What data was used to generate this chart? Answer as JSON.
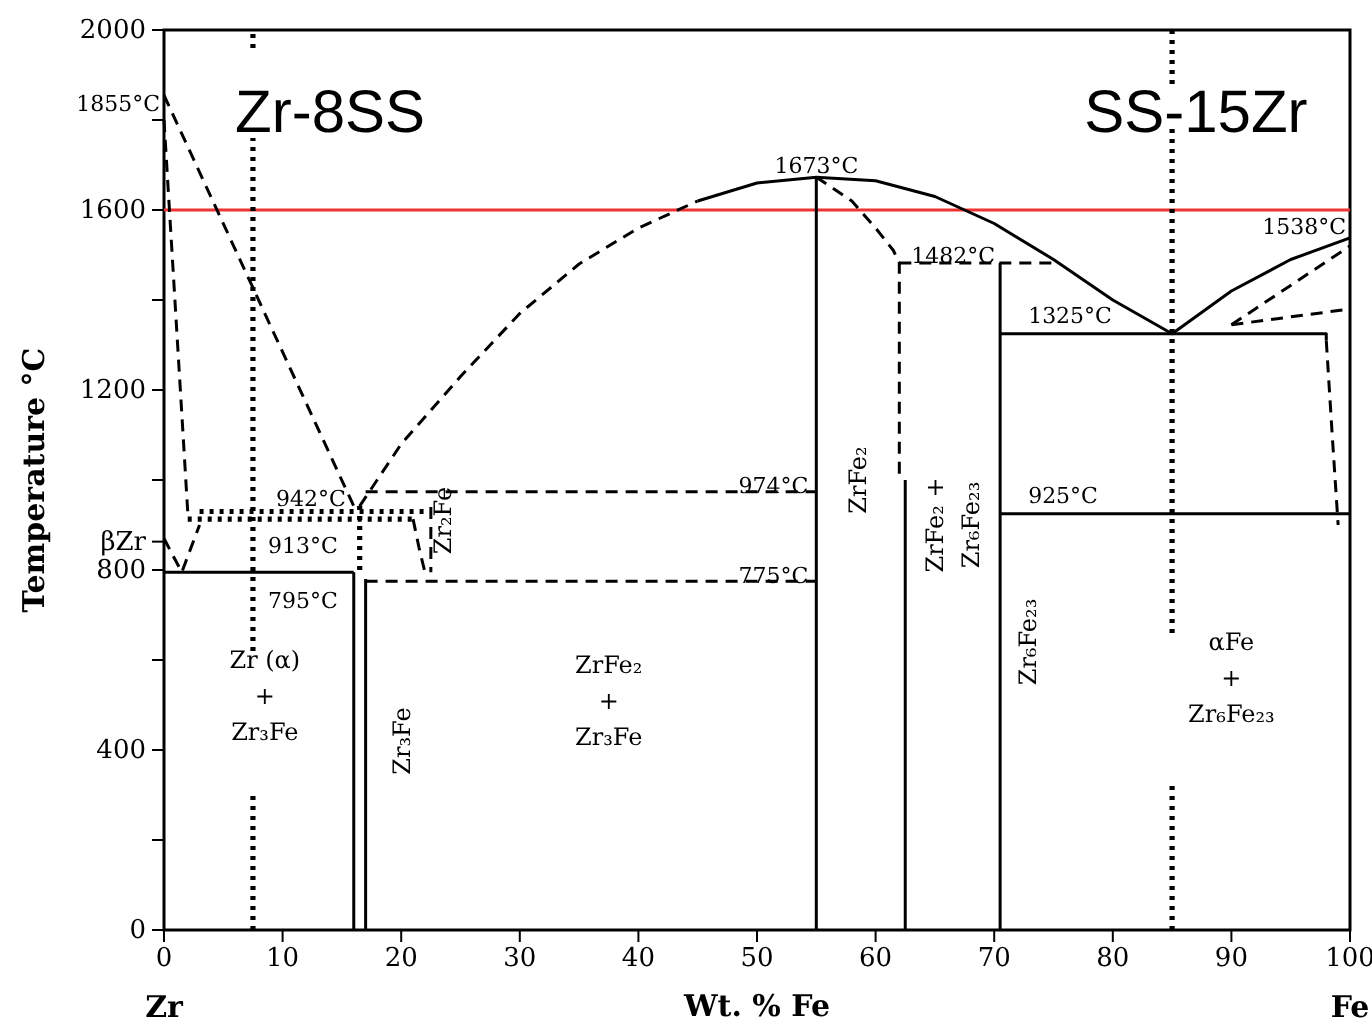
{
  "chart_data": {
    "type": "line",
    "xlabel": "Wt. % Fe",
    "ylabel": "Temperature °C",
    "xlim": [
      0,
      100
    ],
    "xticks": [
      0,
      10,
      20,
      30,
      40,
      50,
      60,
      70,
      80,
      90,
      100
    ],
    "ylim": [
      0,
      2000
    ],
    "yticks": [
      0,
      {
        "value": 200,
        "label": null
      },
      400,
      {
        "value": 600,
        "label": null
      },
      800,
      {
        "value": 863,
        "label": "βZr"
      },
      {
        "value": 1000,
        "label": null
      },
      1200,
      {
        "value": 1400,
        "label": null
      },
      1600,
      {
        "value": 1800,
        "label": null
      },
      2000
    ],
    "ref_lines": [
      {
        "axis": "y",
        "value": 1600,
        "label": null,
        "color": "#ee3333",
        "line_style": "solid"
      }
    ],
    "series": [
      {
        "color": "#000000",
        "line_style": "dashed",
        "x": [
          16.5,
          20,
          25,
          30,
          35,
          40,
          45
        ],
        "values": [
          942,
          1080,
          1230,
          1370,
          1480,
          1560,
          1620
        ]
      },
      {
        "color": "#000000",
        "line_style": "solid",
        "x": [
          45,
          50,
          55,
          60,
          65,
          70,
          75,
          80,
          85,
          90,
          95,
          100
        ],
        "values": [
          1620,
          1660,
          1673,
          1665,
          1630,
          1570,
          1490,
          1400,
          1325,
          1420,
          1490,
          1538
        ]
      },
      {
        "color": "#000000",
        "line_style": "dashed",
        "x": [
          0,
          16
        ],
        "values": [
          1855,
          942
        ]
      },
      {
        "color": "#000000",
        "line_style": "dashed",
        "x": [
          0,
          2
        ],
        "values": [
          1800,
          930
        ]
      },
      {
        "color": "#000000",
        "line_style": "dashed",
        "x": [
          0,
          1.5,
          3
        ],
        "values": [
          870,
          795,
          900
        ]
      },
      {
        "color": "#000000",
        "line_style": "dotted",
        "x": [
          3,
          22
        ],
        "values": [
          930,
          930
        ]
      },
      {
        "color": "#000000",
        "line_style": "dotted",
        "x": [
          2,
          21
        ],
        "values": [
          913,
          913
        ]
      },
      {
        "color": "#000000",
        "line_style": "dashed",
        "x": [
          21,
          21.5,
          22
        ],
        "values": [
          913,
          850,
          795
        ]
      },
      {
        "color": "#000000",
        "line_style": "dashed",
        "x": [
          22.5,
          22.5
        ],
        "values": [
          940,
          795
        ]
      },
      {
        "color": "#000000",
        "line_style": "dashed",
        "x": [
          17,
          55
        ],
        "values": [
          974,
          974
        ]
      },
      {
        "color": "#000000",
        "line_style": "dashed",
        "x": [
          17,
          55
        ],
        "values": [
          775,
          775
        ]
      },
      {
        "color": "#000000",
        "line_style": "solid",
        "x": [
          0,
          16
        ],
        "values": [
          795,
          795
        ]
      },
      {
        "color": "#000000",
        "line_style": "solid",
        "x": [
          16,
          16
        ],
        "values": [
          0,
          795
        ]
      },
      {
        "color": "#000000",
        "line_style": "solid",
        "x": [
          17,
          17
        ],
        "values": [
          0,
          780
        ]
      },
      {
        "color": "#000000",
        "line_style": "dotted",
        "x": [
          16.5,
          16.5
        ],
        "values": [
          800,
          942
        ]
      },
      {
        "color": "#000000",
        "line_style": "solid",
        "x": [
          55,
          55
        ],
        "values": [
          0,
          1673
        ]
      },
      {
        "color": "#000000",
        "line_style": "dashed",
        "x": [
          55,
          58,
          60,
          61.5,
          62,
          62
        ],
        "values": [
          1673,
          1620,
          1560,
          1510,
          1482,
          1000
        ]
      },
      {
        "color": "#000000",
        "line_style": "solid",
        "x": [
          62.5,
          62.5
        ],
        "values": [
          0,
          1000
        ]
      },
      {
        "color": "#000000",
        "line_style": "dashed",
        "x": [
          62,
          75
        ],
        "values": [
          1482,
          1482
        ]
      },
      {
        "color": "#000000",
        "line_style": "solid",
        "x": [
          70.5,
          70.5
        ],
        "values": [
          0,
          1482
        ]
      },
      {
        "color": "#000000",
        "line_style": "solid",
        "x": [
          70.5,
          98,
          98
        ],
        "values": [
          1325,
          1325,
          1310
        ]
      },
      {
        "color": "#000000",
        "line_style": "solid",
        "x": [
          70.5,
          100
        ],
        "values": [
          925,
          925
        ]
      },
      {
        "color": "#000000",
        "line_style": "dashed",
        "x": [
          90,
          100
        ],
        "values": [
          1345,
          1380
        ]
      },
      {
        "color": "#000000",
        "line_style": "dashed",
        "x": [
          90,
          100
        ],
        "values": [
          1345,
          1520
        ]
      },
      {
        "color": "#000000",
        "line_style": "dashed",
        "x": [
          98,
          98.5,
          99
        ],
        "values": [
          1310,
          1100,
          900
        ]
      },
      {
        "color": "#000000",
        "line_style": "dotted",
        "x": [
          7.5,
          7.5
        ],
        "values": [
          0,
          310
        ]
      },
      {
        "color": "#000000",
        "line_style": "dotted",
        "x": [
          7.5,
          7.5
        ],
        "values": [
          620,
          1760
        ]
      },
      {
        "color": "#000000",
        "line_style": "dotted",
        "x": [
          7.5,
          7.5
        ],
        "values": [
          1960,
          2000
        ]
      },
      {
        "color": "#000000",
        "line_style": "dotted",
        "x": [
          85,
          85
        ],
        "values": [
          0,
          320
        ]
      },
      {
        "color": "#000000",
        "line_style": "dotted",
        "x": [
          85,
          85
        ],
        "values": [
          660,
          1780
        ]
      },
      {
        "color": "#000000",
        "line_style": "dotted",
        "x": [
          85,
          85
        ],
        "values": [
          1880,
          2000
        ]
      }
    ],
    "annotations": [
      "Zr-8SS",
      "SS-15Zr",
      {
        "text": "1855°C",
        "x": 0,
        "y": 1855
      },
      {
        "text": "1673°C",
        "x": 55,
        "y": 1673
      },
      {
        "text": "1538°C",
        "x": 100,
        "y": 1538
      },
      {
        "text": "1482°C",
        "x": 62,
        "y": 1482
      },
      {
        "text": "1325°C",
        "x": 70.5,
        "y": 1325
      },
      {
        "text": "925°C",
        "x": 70.5,
        "y": 925
      },
      {
        "text": "974°C",
        "x": 55,
        "y": 974
      },
      {
        "text": "775°C",
        "x": 55,
        "y": 775
      },
      {
        "text": "942°C",
        "x": 16,
        "y": 942
      },
      {
        "text": "913°C",
        "x": 16,
        "y": 913
      },
      {
        "text": "795°C",
        "x": 16,
        "y": 795
      },
      "Zr (α)\n+\nZr₃Fe",
      "Zr₃Fe",
      "Zr₂Fe",
      "ZrFe₂\n+\nZr₃Fe",
      "ZrFe₂",
      "ZrFe₂ +\nZr₆Fe₂₃",
      "Zr₆Fe₂₃",
      "αFe\n+\nZr₆Fe₂₃",
      "Zr",
      "Fe"
    ]
  }
}
